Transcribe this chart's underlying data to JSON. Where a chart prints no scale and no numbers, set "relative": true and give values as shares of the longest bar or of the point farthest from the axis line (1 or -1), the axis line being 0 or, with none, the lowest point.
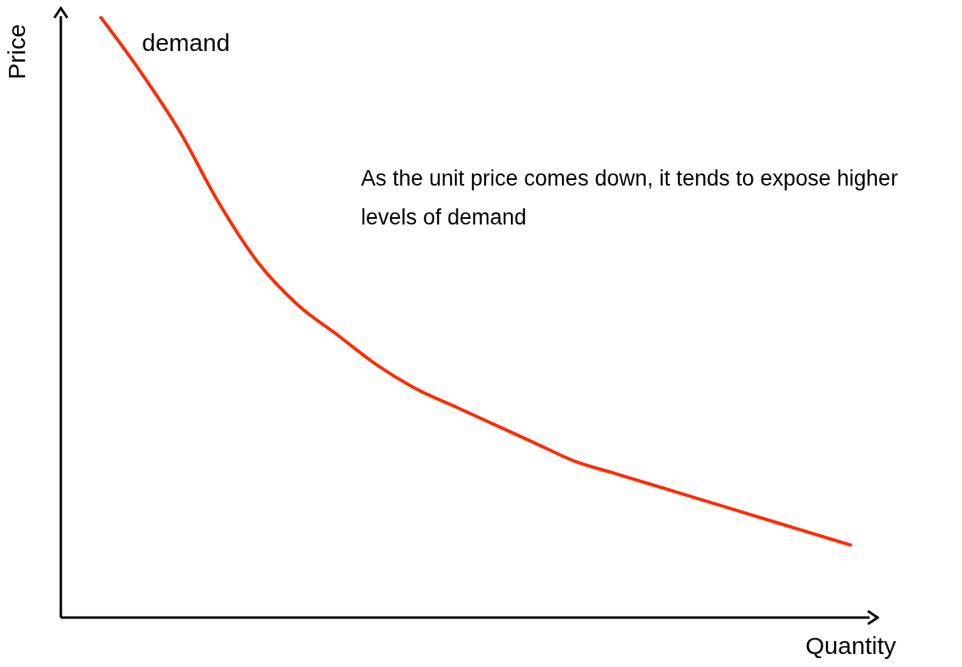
{
  "chart_data": {
    "type": "line",
    "relative": true,
    "xlabel": "Quantity",
    "ylabel": "Price",
    "marker": "none",
    "line_style": "solid",
    "categories": [
      null,
      null,
      null,
      null,
      null,
      null,
      null,
      null,
      null,
      null,
      null,
      null,
      null,
      null,
      null,
      null,
      null,
      null,
      null,
      null
    ],
    "series": [
      {
        "name": "demand",
        "color": "#ff2a00",
        "values": [
          1.0,
          0.91,
          0.81,
          0.69,
          0.59,
          0.52,
          0.47,
          0.42,
          0.38,
          0.35,
          0.32,
          0.29,
          0.26,
          0.24,
          0.22,
          0.2,
          0.18,
          0.16,
          0.14,
          0.12
        ]
      }
    ],
    "annotations": [
      "As the unit price comes down, it tends to expose higher levels of demand"
    ]
  }
}
